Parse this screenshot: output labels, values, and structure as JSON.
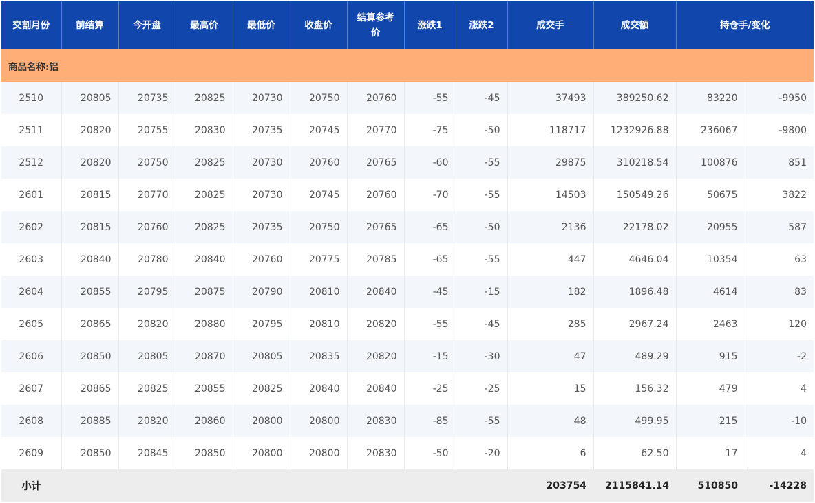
{
  "colors": {
    "header_bg": "#1147ad",
    "group_bg": "#ffae78",
    "stripe": "#f3f6fa",
    "subtotal_bg": "#ededed"
  },
  "headers": [
    "交割月份",
    "前结算",
    "今开盘",
    "最高价",
    "最低价",
    "收盘价",
    "结算参考价",
    "涨跌1",
    "涨跌2",
    "成交手",
    "成交额",
    "持仓手/变化"
  ],
  "group_label": "商品名称:铝",
  "rows": [
    [
      "2510",
      "20805",
      "20735",
      "20825",
      "20730",
      "20750",
      "20760",
      "-55",
      "-45",
      "37493",
      "389250.62",
      "83220",
      "-9950"
    ],
    [
      "2511",
      "20820",
      "20755",
      "20830",
      "20735",
      "20745",
      "20770",
      "-75",
      "-50",
      "118717",
      "1232926.88",
      "236067",
      "-9800"
    ],
    [
      "2512",
      "20820",
      "20750",
      "20825",
      "20730",
      "20760",
      "20765",
      "-60",
      "-55",
      "29875",
      "310218.54",
      "100876",
      "851"
    ],
    [
      "2601",
      "20815",
      "20770",
      "20825",
      "20730",
      "20745",
      "20760",
      "-70",
      "-55",
      "14503",
      "150549.26",
      "50675",
      "3822"
    ],
    [
      "2602",
      "20815",
      "20760",
      "20825",
      "20735",
      "20750",
      "20765",
      "-65",
      "-50",
      "2136",
      "22178.02",
      "20955",
      "587"
    ],
    [
      "2603",
      "20840",
      "20780",
      "20840",
      "20760",
      "20775",
      "20785",
      "-65",
      "-55",
      "447",
      "4646.04",
      "10354",
      "63"
    ],
    [
      "2604",
      "20855",
      "20795",
      "20875",
      "20790",
      "20810",
      "20840",
      "-45",
      "-15",
      "182",
      "1896.48",
      "4614",
      "83"
    ],
    [
      "2605",
      "20865",
      "20820",
      "20880",
      "20795",
      "20810",
      "20820",
      "-55",
      "-45",
      "285",
      "2967.24",
      "2463",
      "120"
    ],
    [
      "2606",
      "20850",
      "20805",
      "20870",
      "20805",
      "20835",
      "20820",
      "-15",
      "-30",
      "47",
      "489.29",
      "915",
      "-2"
    ],
    [
      "2607",
      "20865",
      "20825",
      "20855",
      "20825",
      "20840",
      "20840",
      "-25",
      "-25",
      "15",
      "156.32",
      "479",
      "4"
    ],
    [
      "2608",
      "20885",
      "20820",
      "20860",
      "20800",
      "20800",
      "20830",
      "-85",
      "-55",
      "48",
      "499.95",
      "215",
      "-10"
    ],
    [
      "2609",
      "20850",
      "20845",
      "20850",
      "20800",
      "20800",
      "20830",
      "-50",
      "-20",
      "6",
      "62.50",
      "17",
      "4"
    ]
  ],
  "subtotal": {
    "label": "小计",
    "volume": "203754",
    "turnover": "2115841.14",
    "open_interest": "510850",
    "oi_change": "-14228"
  }
}
